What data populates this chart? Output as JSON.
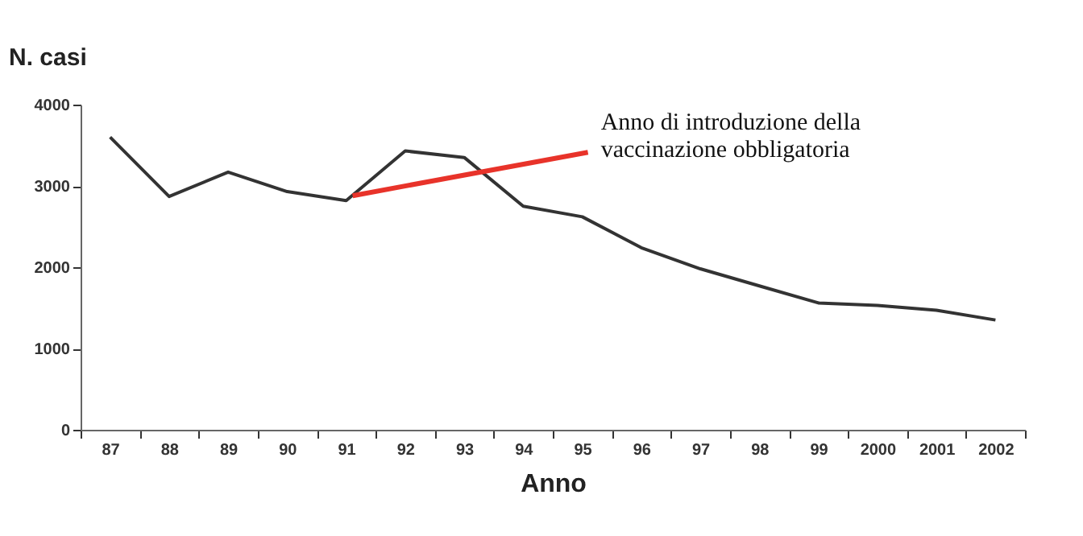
{
  "chart_data": {
    "type": "line",
    "xlabel": "Anno",
    "ylabel": "N. casi",
    "categories": [
      "87",
      "88",
      "89",
      "90",
      "91",
      "92",
      "93",
      "94",
      "95",
      "96",
      "97",
      "98",
      "99",
      "2000",
      "2001",
      "2002"
    ],
    "series": [
      {
        "color": "#333333",
        "values": [
          3600,
          2870,
          3170,
          2930,
          2820,
          3430,
          3350,
          2750,
          2620,
          2240,
          1980,
          1770,
          1560,
          1530,
          1470,
          1350
        ]
      }
    ],
    "ylim": [
      0,
      4000
    ],
    "yticks": [
      0,
      1000,
      2000,
      3000,
      4000
    ],
    "grid": false,
    "marker": "none",
    "line_style": "solid",
    "annotations": [
      {
        "text": "Anno di introduzione della\nvaccinazione obbligatoria",
        "x": "91",
        "y": 2820
      }
    ]
  }
}
